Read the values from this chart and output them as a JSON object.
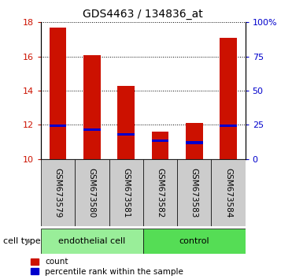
{
  "title": "GDS4463 / 134836_at",
  "categories": [
    "GSM673579",
    "GSM673580",
    "GSM673581",
    "GSM673582",
    "GSM673583",
    "GSM673584"
  ],
  "red_tops": [
    17.7,
    16.1,
    14.3,
    11.6,
    12.1,
    17.1
  ],
  "blue_tops": [
    12.0,
    11.8,
    11.52,
    11.15,
    11.05,
    12.0
  ],
  "blue_bottoms": [
    11.88,
    11.65,
    11.38,
    11.0,
    10.88,
    11.88
  ],
  "bar_bottom": 10.0,
  "ylim_left": [
    10,
    18
  ],
  "ylim_right": [
    0,
    100
  ],
  "yticks_left": [
    10,
    12,
    14,
    16,
    18
  ],
  "yticks_right": [
    0,
    25,
    50,
    75,
    100
  ],
  "ytick_labels_right": [
    "0",
    "25",
    "50",
    "75",
    "100%"
  ],
  "red_color": "#cc1100",
  "blue_color": "#0000cc",
  "group1_label": "endothelial cell",
  "group2_label": "control",
  "group1_color": "#99ee99",
  "group2_color": "#55dd55",
  "group1_indices": [
    0,
    1,
    2
  ],
  "group2_indices": [
    3,
    4,
    5
  ],
  "cell_type_label": "cell type",
  "legend_red_label": "count",
  "legend_blue_label": "percentile rank within the sample",
  "bar_width": 0.5,
  "grid_linestyle": "dotted",
  "left_tick_color": "#cc1100",
  "right_tick_color": "#0000cc"
}
